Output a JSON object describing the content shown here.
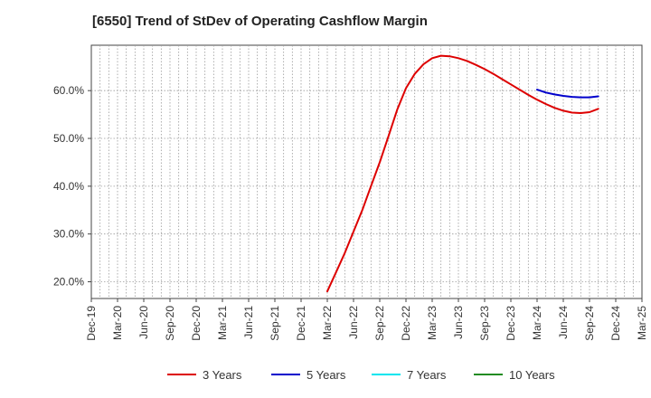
{
  "title": "[6550]  Trend of StDev of Operating Cashflow Margin",
  "chart_data": {
    "type": "line",
    "title": "[6550]  Trend of StDev of Operating Cashflow Margin",
    "xlabel": "",
    "ylabel": "",
    "x_ticks": [
      "Dec-19",
      "Mar-20",
      "Jun-20",
      "Sep-20",
      "Dec-20",
      "Mar-21",
      "Jun-21",
      "Sep-21",
      "Dec-21",
      "Mar-22",
      "Jun-22",
      "Sep-22",
      "Dec-22",
      "Mar-23",
      "Jun-23",
      "Sep-23",
      "Dec-23",
      "Mar-24",
      "Jun-24",
      "Sep-24",
      "Dec-24",
      "Mar-25"
    ],
    "y_ticks": [
      "20.0%",
      "30.0%",
      "40.0%",
      "50.0%",
      "60.0%"
    ],
    "y_tick_values": [
      20,
      30,
      40,
      50,
      60
    ],
    "ylim": [
      16.5,
      69.5
    ],
    "grid": true,
    "legend_position": "bottom",
    "series": [
      {
        "name": "3 Years",
        "color": "#dd0000",
        "points": [
          [
            "2022-03",
            18.0
          ],
          [
            "2022-04",
            22.0
          ],
          [
            "2022-05",
            26.0
          ],
          [
            "2022-06",
            30.5
          ],
          [
            "2022-07",
            35.0
          ],
          [
            "2022-08",
            40.0
          ],
          [
            "2022-09",
            45.0
          ],
          [
            "2022-10",
            50.5
          ],
          [
            "2022-11",
            56.0
          ],
          [
            "2022-12",
            60.5
          ],
          [
            "2023-01",
            63.5
          ],
          [
            "2023-02",
            65.5
          ],
          [
            "2023-03",
            66.8
          ],
          [
            "2023-04",
            67.3
          ],
          [
            "2023-05",
            67.2
          ],
          [
            "2023-06",
            66.8
          ],
          [
            "2023-07",
            66.2
          ],
          [
            "2023-08",
            65.4
          ],
          [
            "2023-09",
            64.5
          ],
          [
            "2023-10",
            63.5
          ],
          [
            "2023-11",
            62.4
          ],
          [
            "2023-12",
            61.3
          ],
          [
            "2024-01",
            60.2
          ],
          [
            "2024-02",
            59.1
          ],
          [
            "2024-03",
            58.1
          ],
          [
            "2024-04",
            57.2
          ],
          [
            "2024-05",
            56.4
          ],
          [
            "2024-06",
            55.8
          ],
          [
            "2024-07",
            55.4
          ],
          [
            "2024-08",
            55.3
          ],
          [
            "2024-09",
            55.5
          ],
          [
            "2024-10",
            56.2
          ]
        ]
      },
      {
        "name": "5 Years",
        "color": "#0000cc",
        "points": [
          [
            "2024-03",
            60.2
          ],
          [
            "2024-04",
            59.6
          ],
          [
            "2024-05",
            59.2
          ],
          [
            "2024-06",
            58.9
          ],
          [
            "2024-07",
            58.7
          ],
          [
            "2024-08",
            58.6
          ],
          [
            "2024-09",
            58.6
          ],
          [
            "2024-10",
            58.8
          ]
        ]
      },
      {
        "name": "7 Years",
        "color": "#00e5ee",
        "points": []
      },
      {
        "name": "10 Years",
        "color": "#228b22",
        "points": []
      }
    ]
  }
}
